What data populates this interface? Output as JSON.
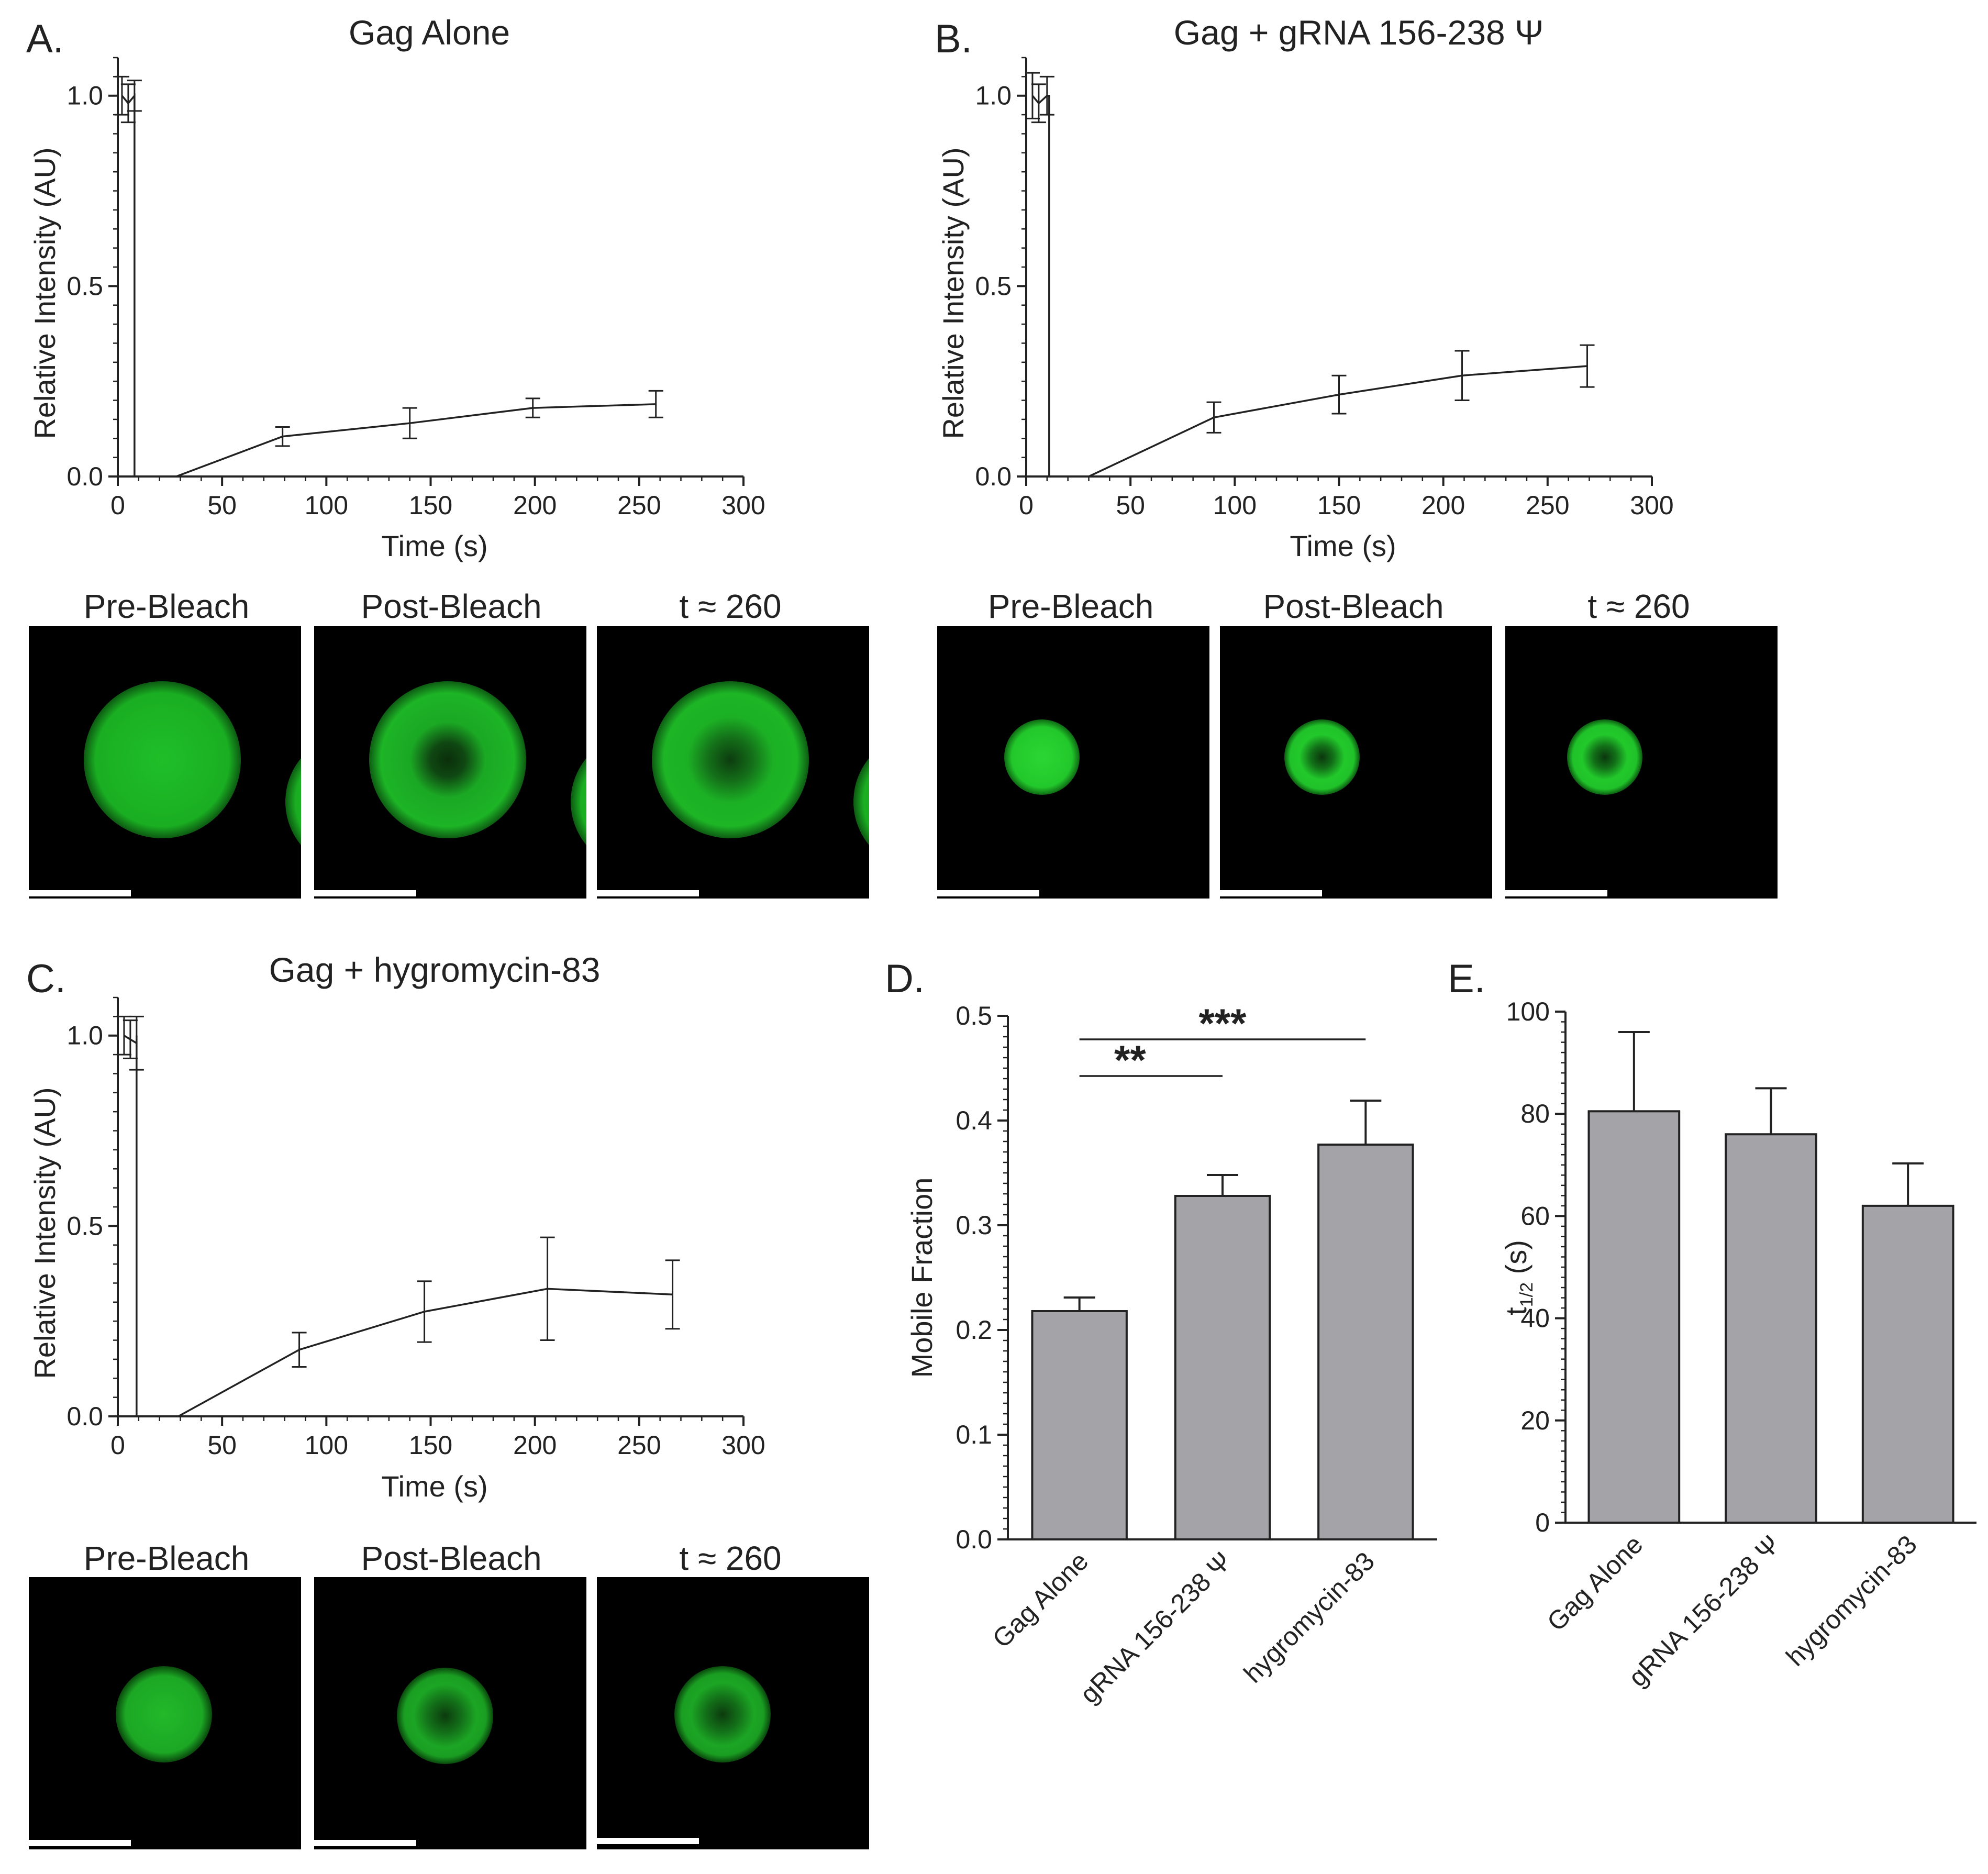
{
  "panels": {
    "A": {
      "letter": "A.",
      "title": "Gag Alone",
      "xlabel": "Time (s)",
      "ylabel": "Relative Intensity (AU)",
      "images": [
        "Pre-Bleach",
        "Post-Bleach",
        "t ≈ 260"
      ]
    },
    "B": {
      "letter": "B.",
      "title": "Gag + gRNA 156-238 Ψ",
      "xlabel": "Time (s)",
      "ylabel": "Relative Intensity (AU)",
      "images": [
        "Pre-Bleach",
        "Post-Bleach",
        "t ≈ 260"
      ]
    },
    "C": {
      "letter": "C.",
      "title": "Gag + hygromycin-83",
      "xlabel": "Time (s)",
      "ylabel": "Relative Intensity (AU)",
      "images": [
        "Pre-Bleach",
        "Post-Bleach",
        "t ≈ 260"
      ]
    },
    "D": {
      "letter": "D.",
      "ylabel": "Mobile Fraction",
      "sig": [
        "**",
        "***"
      ]
    },
    "E": {
      "letter": "E.",
      "ylabel": "t",
      "ylabel_sub": "1/2",
      "ylabel_unit": " (s)"
    }
  },
  "colors": {
    "bar": "#a4a3a8",
    "fluor": "#22c22a",
    "axis": "#222222"
  },
  "chart_data": [
    {
      "type": "line",
      "panel": "A",
      "xlim": [
        0,
        300
      ],
      "ylim": [
        0,
        1.1
      ],
      "xticks": [
        0,
        50,
        100,
        150,
        200,
        250,
        300
      ],
      "yticks": [
        0.0,
        0.5,
        1.0
      ],
      "xtick_labels": [
        "0",
        "50",
        "100",
        "150",
        "200",
        "250",
        "300"
      ],
      "ytick_labels": [
        "0.0",
        "0.5",
        "1.0"
      ],
      "x": [
        2,
        5,
        8,
        28,
        79,
        140,
        199,
        258
      ],
      "y": [
        1.0,
        0.98,
        1.0,
        0.0,
        0.105,
        0.14,
        0.18,
        0.19
      ],
      "err": [
        0.05,
        0.05,
        0.04,
        0,
        0.025,
        0.04,
        0.025,
        0.035
      ],
      "bleach": {
        "x": 8,
        "from": 1.0,
        "to": 0.0
      }
    },
    {
      "type": "line",
      "panel": "B",
      "xlim": [
        0,
        300
      ],
      "ylim": [
        0,
        1.1
      ],
      "xticks": [
        0,
        50,
        100,
        150,
        200,
        250,
        300
      ],
      "yticks": [
        0.0,
        0.5,
        1.0
      ],
      "xtick_labels": [
        "0",
        "50",
        "100",
        "150",
        "200",
        "250",
        "300"
      ],
      "ytick_labels": [
        "0.0",
        "0.5",
        "1.0"
      ],
      "x": [
        3,
        6,
        10,
        30,
        90,
        150,
        209,
        269
      ],
      "y": [
        1.0,
        0.98,
        1.0,
        0.0,
        0.155,
        0.215,
        0.265,
        0.29
      ],
      "err": [
        0.06,
        0.05,
        0.05,
        0,
        0.04,
        0.05,
        0.065,
        0.055
      ],
      "bleach": {
        "x": 11,
        "from": 1.0,
        "to": 0.0
      }
    },
    {
      "type": "line",
      "panel": "C",
      "xlim": [
        0,
        300
      ],
      "ylim": [
        0,
        1.1
      ],
      "xticks": [
        0,
        50,
        100,
        150,
        200,
        250,
        300
      ],
      "yticks": [
        0.0,
        0.5,
        1.0
      ],
      "xtick_labels": [
        "0",
        "50",
        "100",
        "150",
        "200",
        "250",
        "300"
      ],
      "ytick_labels": [
        "0.0",
        "0.5",
        "1.0"
      ],
      "x": [
        3,
        6,
        9,
        29,
        87,
        147,
        206,
        266
      ],
      "y": [
        1.0,
        0.99,
        0.98,
        0.0,
        0.175,
        0.275,
        0.335,
        0.32
      ],
      "err": [
        0.05,
        0.05,
        0.07,
        0,
        0.045,
        0.08,
        0.135,
        0.09
      ],
      "bleach": {
        "x": 9,
        "from": 1.0,
        "to": 0.0
      }
    },
    {
      "type": "bar",
      "panel": "D",
      "categories": [
        "Gag Alone",
        "gRNA 156-238 Ψ",
        "hygromycin-83"
      ],
      "values": [
        0.218,
        0.328,
        0.377
      ],
      "err": [
        0.013,
        0.02,
        0.042
      ],
      "ylim": [
        0,
        0.5
      ],
      "yticks": [
        0.0,
        0.1,
        0.2,
        0.3,
        0.4,
        0.5
      ],
      "ytick_labels": [
        "0.0",
        "0.1",
        "0.2",
        "0.3",
        "0.4",
        "0.5"
      ],
      "significance": [
        {
          "from": 0,
          "to": 1,
          "label": "**"
        },
        {
          "from": 0,
          "to": 2,
          "label": "***"
        }
      ]
    },
    {
      "type": "bar",
      "panel": "E",
      "categories": [
        "Gag Alone",
        "gRNA 156-238 Ψ",
        "hygromycin-83"
      ],
      "values": [
        80.5,
        76,
        62
      ],
      "err": [
        15.5,
        9,
        8.3
      ],
      "ylim": [
        0,
        100
      ],
      "yticks": [
        0,
        20,
        40,
        60,
        80,
        100
      ],
      "ytick_labels": [
        "0",
        "20",
        "40",
        "60",
        "80",
        "100"
      ]
    }
  ]
}
